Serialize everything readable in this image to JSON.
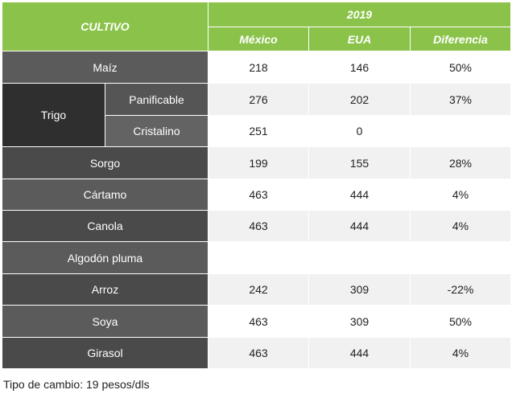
{
  "table": {
    "header": {
      "crop_label": "CULTIVO",
      "year": "2019",
      "columns": [
        "México",
        "EUA",
        "Diferencia"
      ]
    },
    "rows": [
      {
        "crop": "Maíz",
        "mexico": "218",
        "eua": "146",
        "diff": "50%"
      },
      {
        "crop": "Trigo",
        "sub": "Panificable",
        "mexico": "276",
        "eua": "202",
        "diff": "37%"
      },
      {
        "crop": "Trigo",
        "sub": "Cristalino",
        "mexico": "251",
        "eua": "0",
        "diff": ""
      },
      {
        "crop": "Sorgo",
        "mexico": "199",
        "eua": "155",
        "diff": "28%"
      },
      {
        "crop": "Cártamo",
        "mexico": "463",
        "eua": "444",
        "diff": "4%"
      },
      {
        "crop": "Canola",
        "mexico": "463",
        "eua": "444",
        "diff": "4%"
      },
      {
        "crop": "Algodón pluma",
        "mexico": "",
        "eua": "",
        "diff": ""
      },
      {
        "crop": "Arroz",
        "mexico": "242",
        "eua": "309",
        "diff": "-22%"
      },
      {
        "crop": "Soya",
        "mexico": "463",
        "eua": "309",
        "diff": "50%"
      },
      {
        "crop": "Girasol",
        "mexico": "463",
        "eua": "444",
        "diff": "4%"
      }
    ]
  },
  "footnote": "Tipo de cambio: 19 pesos/dls",
  "colors": {
    "header_green": "#8bc34a",
    "label_gray": "#5b5b5b",
    "label_dark": "#4a4a4a"
  }
}
